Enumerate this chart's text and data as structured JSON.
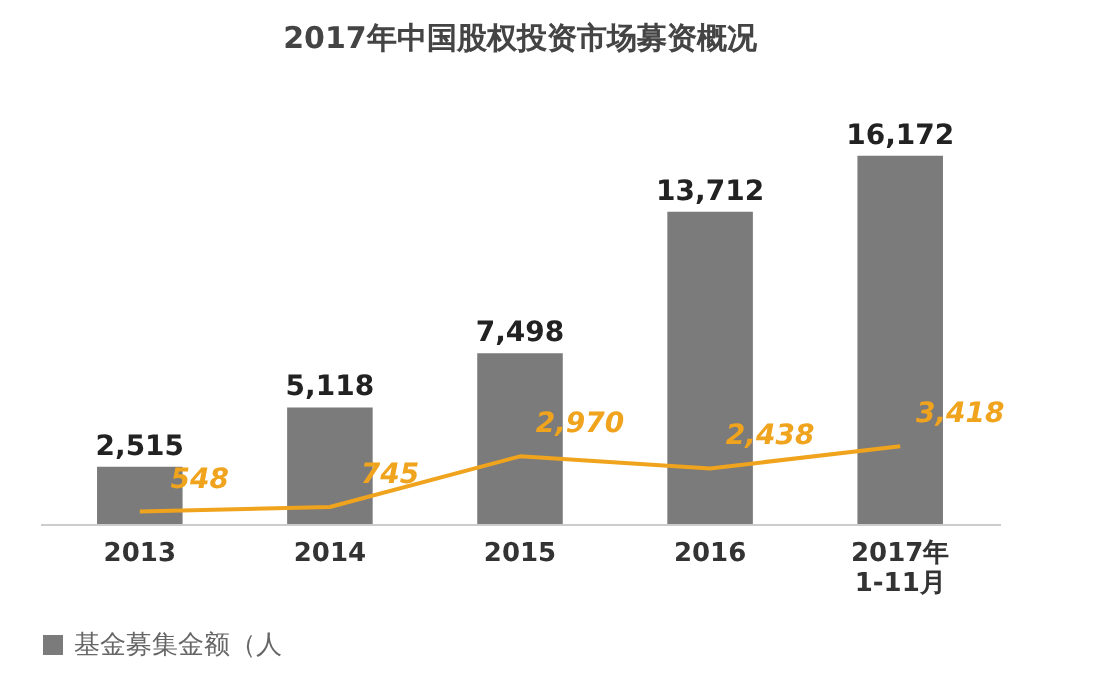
{
  "chart_data": {
    "type": "bar",
    "title": "2017年中国股权投资市场募资概况",
    "categories": [
      "2013",
      "2014",
      "2015",
      "2016",
      "2017年 1-11月"
    ],
    "series": [
      {
        "name": "基金募集金额（人",
        "color": "#7b7b7b",
        "values": [
          2515,
          5118,
          7498,
          13712,
          16172
        ],
        "value_labels": [
          "2,515",
          "5,118",
          "7,498",
          "13,712",
          "16,172"
        ]
      },
      {
        "type": "line",
        "color": "#f0a31c",
        "values": [
          548,
          745,
          2970,
          2438,
          3418
        ],
        "value_labels": [
          "548",
          "745",
          "2,970",
          "2,438",
          "3,418"
        ]
      }
    ],
    "legend": "bottom",
    "marker": "none"
  }
}
